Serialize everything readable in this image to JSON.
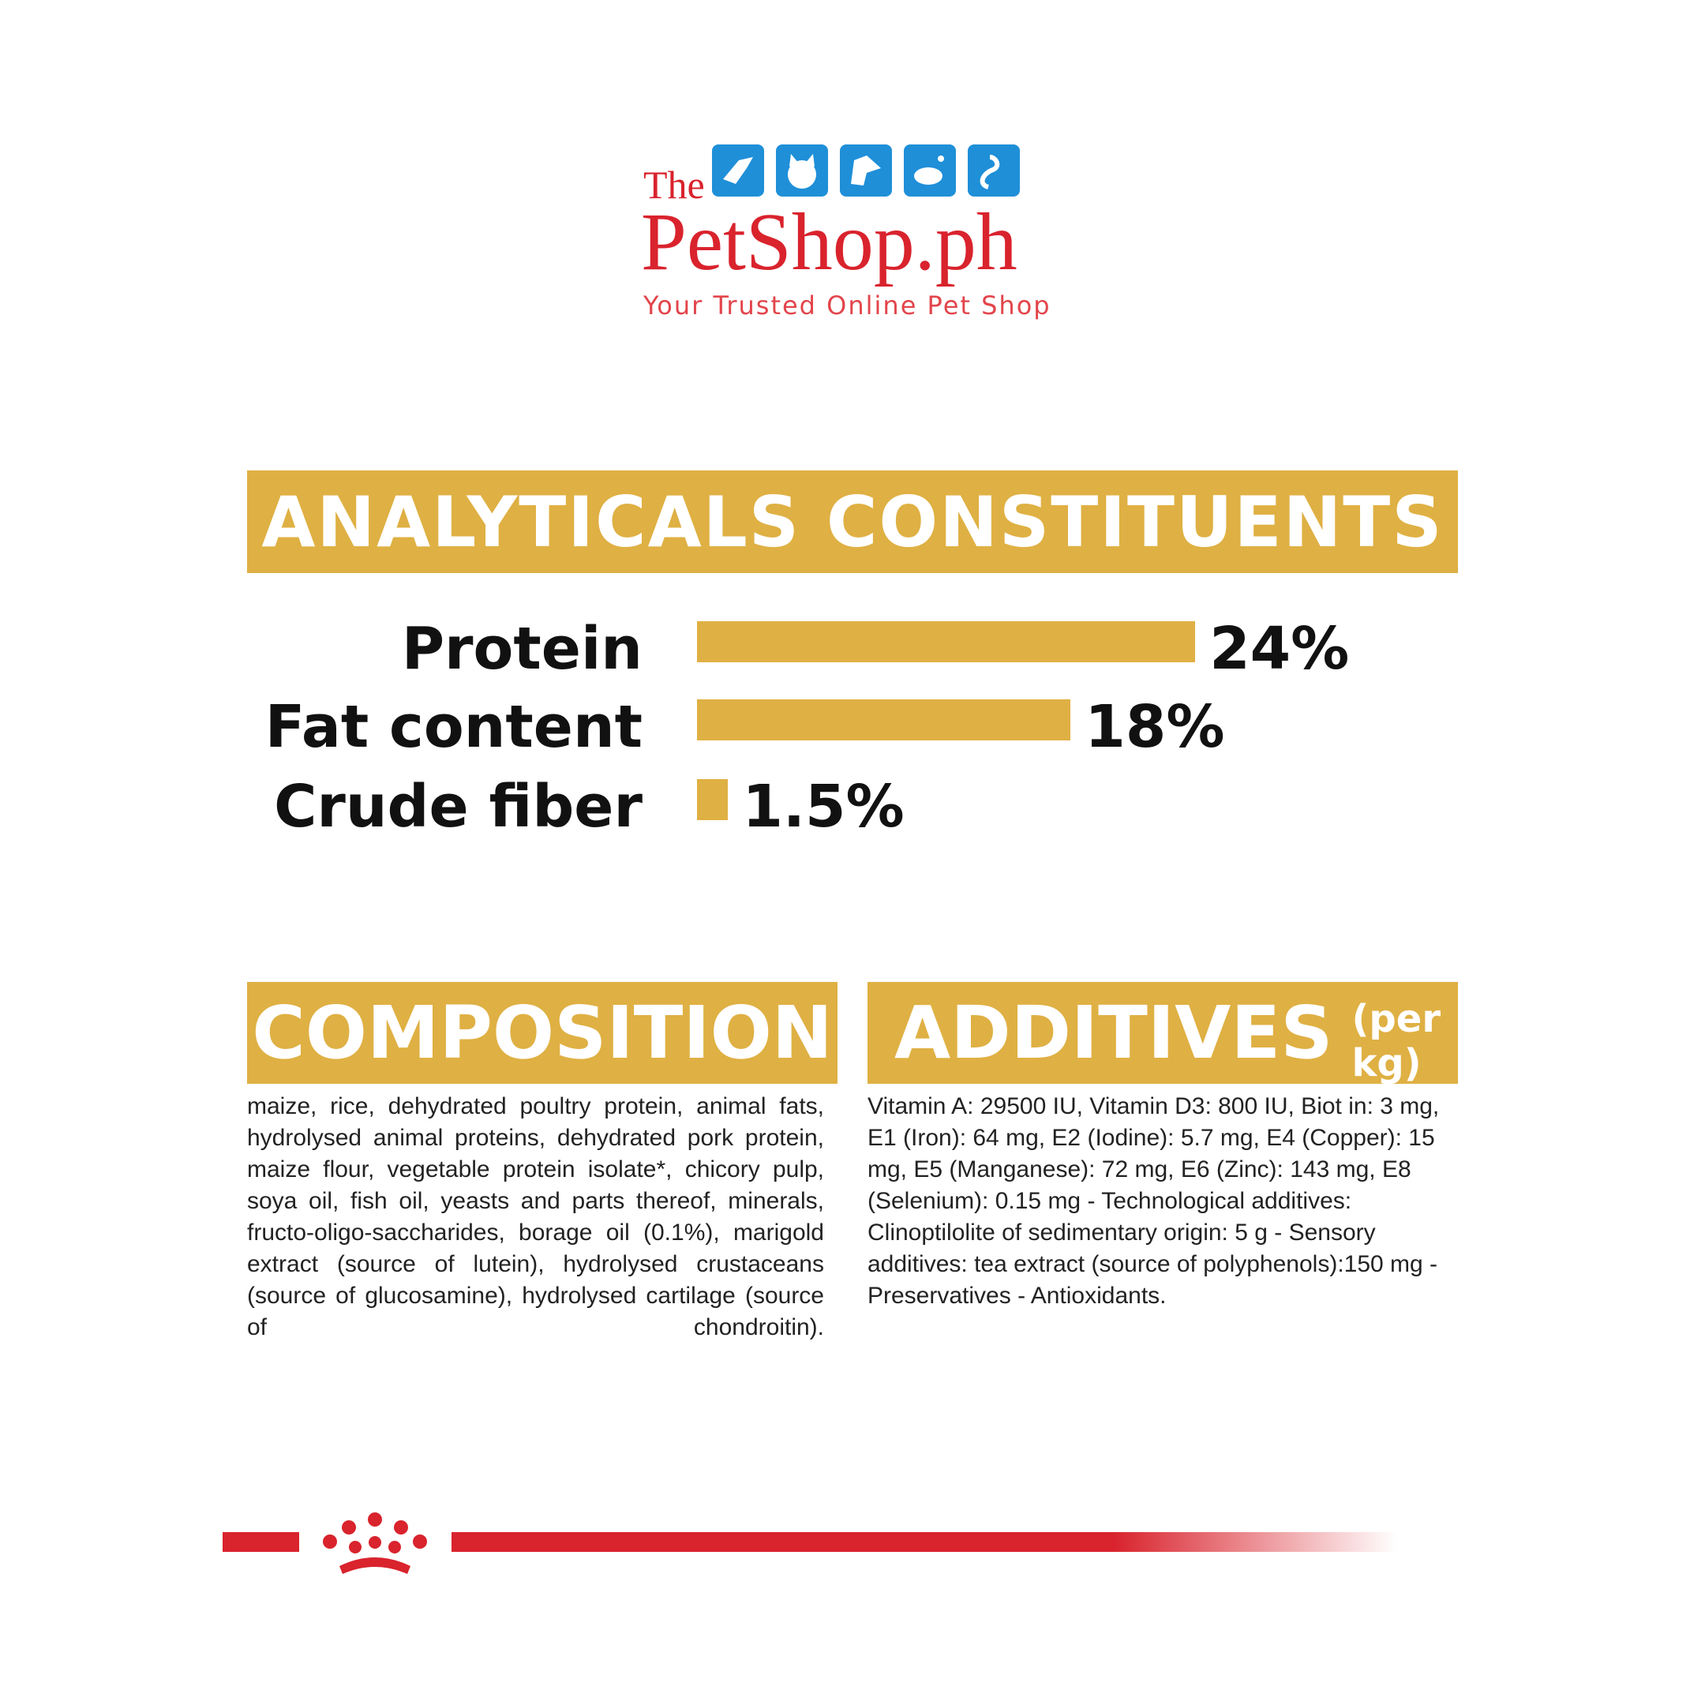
{
  "logo": {
    "the": "The",
    "name": "PetShop.ph",
    "tagline": "Your Trusted Online Pet Shop"
  },
  "chart_data": {
    "type": "bar",
    "title": "ANALYTICALS CONSTITUENTS",
    "categories": [
      "Protein",
      "Fat content",
      "Crude fiber"
    ],
    "values": [
      24,
      18,
      1.5
    ],
    "value_labels": [
      "24%",
      "18%",
      "1.5%"
    ],
    "color": "#dfb043"
  },
  "composition": {
    "title": "COMPOSITION",
    "text": "maize, rice, dehydrated poultry protein, animal fats, hydrolysed animal proteins, dehydrated pork protein, maize flour, vegetable protein isolate*, chicory pulp, soya oil, fish oil, yeasts and parts thereof, minerals, fructo-oligo-saccharides, borage oil (0.1%), marigold extract (source of lutein), hydrolysed crustaceans (source of glucosamine), hydrolysed cartilage (source of chondroitin)."
  },
  "additives": {
    "title": "ADDITIVES",
    "unit": "(per kg)",
    "text": "Vitamin A: 29500 IU, Vitamin D3: 800 IU, Biot in: 3 mg, E1 (Iron): 64 mg, E2 (Iodine): 5.7 mg, E4 (Copper): 15 mg, E5 (Manganese): 72 mg, E6 (Zinc): 143 mg, E8 (Selenium): 0.15 mg - Technological additives: Clinoptilolite of sedimentary origin: 5 g - Sensory additives: tea extract (source of polyphenols):150 mg - Preservatives - Antioxidants."
  }
}
